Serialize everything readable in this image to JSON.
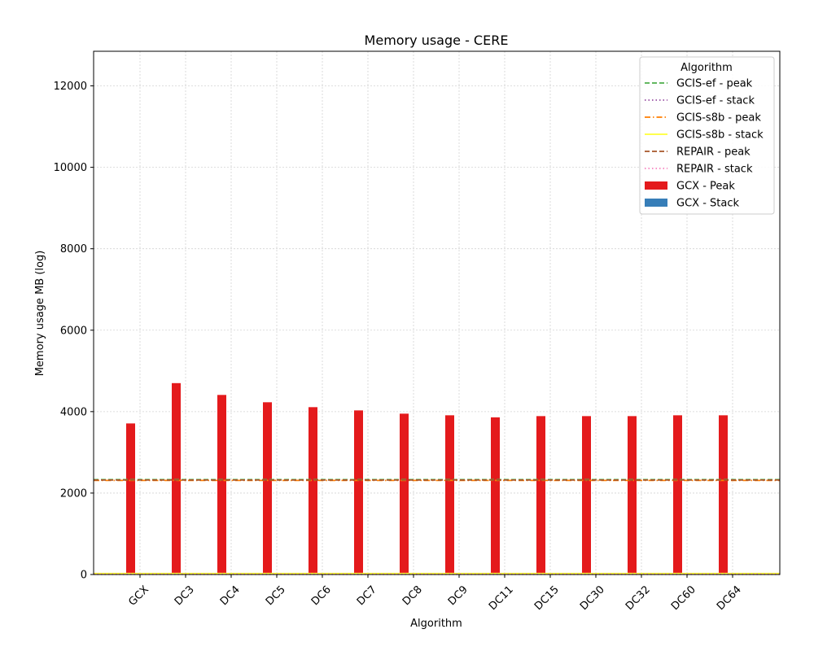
{
  "chart_data": {
    "type": "bar",
    "title": "Memory usage -  CERE",
    "xlabel": "Algorithm",
    "ylabel": "Memory usage MB (log)",
    "ylim": [
      0,
      12850
    ],
    "yticks": [
      0,
      2000,
      4000,
      6000,
      8000,
      10000,
      12000
    ],
    "grid": true,
    "categories": [
      "GCX",
      "DC3",
      "DC4",
      "DC5",
      "DC6",
      "DC7",
      "DC8",
      "DC9",
      "DC11",
      "DC15",
      "DC30",
      "DC32",
      "DC60",
      "DC64"
    ],
    "series": [
      {
        "name": "GCX - Peak",
        "color": "#e41a1c",
        "values": [
          3710,
          4700,
          4410,
          4230,
          4110,
          4030,
          3950,
          3910,
          3860,
          3890,
          3890,
          3890,
          3910,
          3910
        ]
      },
      {
        "name": "GCX - Stack",
        "color": "#377eb8",
        "values": [
          0,
          0,
          0,
          0,
          0,
          0,
          0,
          0,
          0,
          0,
          0,
          0,
          0,
          0
        ]
      }
    ],
    "reference_lines": [
      {
        "name": "GCIS-ef  - peak",
        "value": 2330,
        "color": "#4daf4a",
        "style": "dashed"
      },
      {
        "name": "GCIS-ef - stack",
        "value": 5,
        "color": "#984ea3",
        "style": "dotted"
      },
      {
        "name": "GCIS-s8b  - peak",
        "value": 2310,
        "color": "#ff7f00",
        "style": "dashdot"
      },
      {
        "name": "GCIS-s8b - stack",
        "value": 25,
        "color": "#ffff33",
        "style": "solid"
      },
      {
        "name": "REPAIR  - peak",
        "value": 2320,
        "color": "#a65628",
        "style": "dashed"
      },
      {
        "name": "REPAIR - stack",
        "value": 10,
        "color": "#f781bf",
        "style": "dotted"
      }
    ],
    "legend": {
      "title": "Algorithm",
      "placement": "top-right"
    }
  }
}
